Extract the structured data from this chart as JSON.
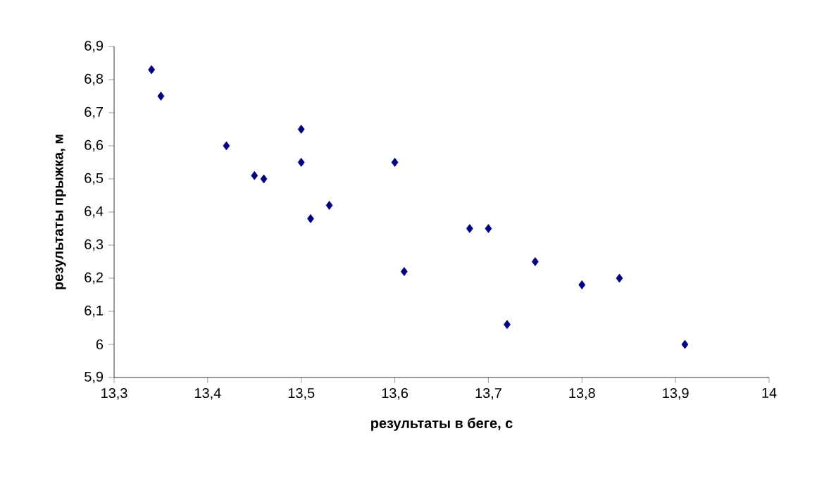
{
  "chart_data": {
    "type": "scatter",
    "xlabel": "результаты в беге, с",
    "ylabel": "результаты прыжка, м",
    "marker": "diamond",
    "grid": false,
    "xlim": [
      13.3,
      14
    ],
    "ylim": [
      5.9,
      6.9
    ],
    "xticks": [
      {
        "value": 13.3,
        "label": "13,3"
      },
      {
        "value": 13.4,
        "label": "13,4"
      },
      {
        "value": 13.5,
        "label": "13,5"
      },
      {
        "value": 13.6,
        "label": "13,6"
      },
      {
        "value": 13.7,
        "label": "13,7"
      },
      {
        "value": 13.8,
        "label": "13,8"
      },
      {
        "value": 13.9,
        "label": "13,9"
      },
      14
    ],
    "yticks": [
      {
        "value": 5.9,
        "label": "5,9"
      },
      6,
      {
        "value": 6.1,
        "label": "6,1"
      },
      {
        "value": 6.2,
        "label": "6,2"
      },
      {
        "value": 6.3,
        "label": "6,3"
      },
      {
        "value": 6.4,
        "label": "6,4"
      },
      {
        "value": 6.5,
        "label": "6,5"
      },
      {
        "value": 6.6,
        "label": "6,6"
      },
      {
        "value": 6.7,
        "label": "6,7"
      },
      {
        "value": 6.8,
        "label": "6,8"
      },
      {
        "value": 6.9,
        "label": "6,9"
      }
    ],
    "series": [
      {
        "color": "#000080",
        "x": [
          13.34,
          13.35,
          13.42,
          13.45,
          13.46,
          13.5,
          13.5,
          13.51,
          13.53,
          13.6,
          13.61,
          13.68,
          13.7,
          13.72,
          13.75,
          13.8,
          13.84,
          13.91
        ],
        "values": [
          6.83,
          6.75,
          6.6,
          6.51,
          6.5,
          6.65,
          6.55,
          6.38,
          6.42,
          6.55,
          6.22,
          6.35,
          6.35,
          6.06,
          6.25,
          6.18,
          6.2,
          6.0
        ]
      }
    ]
  }
}
